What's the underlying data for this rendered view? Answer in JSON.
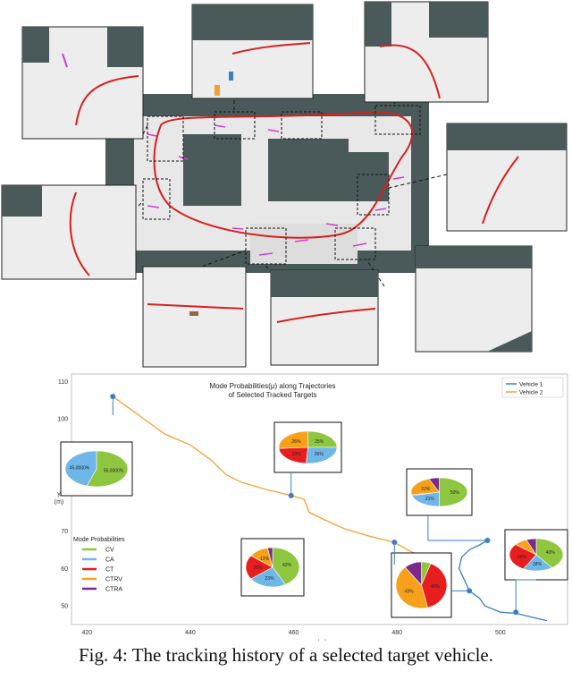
{
  "colors": {
    "map_ground": "#4a5a5a",
    "map_surface": "#eeeeee",
    "trajectory_red": "#d62020",
    "vehicle1": "#3a7fc1",
    "vehicle2": "#f5a033",
    "cv": "#8ec63f",
    "ca": "#6fb7e8",
    "ct": "#e81e1e",
    "ctrv": "#f7a11a",
    "ctra": "#7b2a8c"
  },
  "plot": {
    "title_line1": "Mode Probabilities(μ) along Trajectories",
    "title_line2": "of Selected Tracked Targets",
    "ylabel": "y",
    "ylabel_unit": "(m)",
    "xlabel": "x (m)",
    "legend_series": [
      "Vehicle 1",
      "Vehicle 2"
    ],
    "mode_legend_title": "Mode Probabilities",
    "mode_legend": [
      "CV",
      "CA",
      "CT",
      "CTRV",
      "CTRA"
    ],
    "x_ticks": [
      "420",
      "440",
      "460",
      "480",
      "500"
    ],
    "y_ticks": [
      "110",
      "100",
      "90",
      "80",
      "70",
      "60",
      "50"
    ]
  },
  "chart_data": {
    "type": "line",
    "title": "Mode Probabilities(μ) along Trajectories of Selected Tracked Targets",
    "xlabel": "x (m)",
    "ylabel": "y (m)",
    "xlim": [
      417,
      513
    ],
    "ylim": [
      45,
      112
    ],
    "legend_placement": "top-right",
    "series": [
      {
        "name": "Vehicle 1",
        "x": [
          509,
          506,
          503,
          500,
          497,
          496,
          494,
          493,
          492,
          492.5,
          494,
          496,
          497.5
        ],
        "y": [
          46,
          47,
          48,
          48.3,
          50,
          52,
          54,
          57,
          60,
          63,
          65,
          66.3,
          67.5
        ]
      },
      {
        "name": "Vehicle 2",
        "x": [
          425,
          430,
          435,
          440,
          444,
          447,
          450,
          455,
          459.5,
          462,
          463,
          466,
          470,
          475,
          479.5,
          482,
          485
        ],
        "y": [
          106,
          101,
          96,
          93,
          89,
          85,
          83,
          81,
          79.5,
          78.5,
          75,
          73,
          70.5,
          68.5,
          67,
          65,
          63
        ]
      }
    ],
    "mode_markers": [
      {
        "series": "Vehicle 2",
        "x": 425,
        "y": 106
      },
      {
        "series": "Vehicle 2",
        "x": 459.5,
        "y": 79.5
      },
      {
        "series": "Vehicle 2",
        "x": 479.5,
        "y": 67
      },
      {
        "series": "Vehicle 1",
        "x": 497.5,
        "y": 67.5
      },
      {
        "series": "Vehicle 1",
        "x": 494,
        "y": 54
      },
      {
        "series": "Vehicle 1",
        "x": 503,
        "y": 48.3
      }
    ],
    "pie_charts": [
      {
        "labels": [
          "CV",
          "CA",
          "CT",
          "CTRV",
          "CTRA"
        ],
        "values": [
          55,
          45,
          0,
          0,
          0
        ],
        "slice_text": [
          "55.0000%",
          "45.0000%",
          "",
          "",
          ""
        ]
      },
      {
        "labels": [
          "CV",
          "CA",
          "CT",
          "CTRV",
          "CTRA"
        ],
        "values": [
          25,
          26,
          23,
          26,
          0
        ],
        "slice_text": [
          "25%",
          "26%",
          "23%",
          "26%",
          ""
        ]
      },
      {
        "labels": [
          "CV",
          "CA",
          "CT",
          "CTRV",
          "CTRA"
        ],
        "values": [
          50,
          21,
          1,
          22,
          6
        ],
        "slice_text": [
          "50%",
          "21%",
          "",
          "22%",
          ""
        ]
      },
      {
        "labels": [
          "CV",
          "CA",
          "CT",
          "CTRV",
          "CTRA"
        ],
        "values": [
          42,
          23,
          20,
          12,
          3
        ],
        "slice_text": [
          "42%",
          "23%",
          "20%",
          "12%",
          ""
        ]
      },
      {
        "labels": [
          "CV",
          "CA",
          "CT",
          "CTRV",
          "CTRA"
        ],
        "values": [
          6,
          0,
          40,
          43,
          11
        ],
        "slice_text": [
          "",
          "",
          "40%",
          "43%",
          ""
        ]
      },
      {
        "labels": [
          "CV",
          "CA",
          "CT",
          "CTRV",
          "CTRA"
        ],
        "values": [
          40,
          18,
          28,
          8,
          6
        ],
        "slice_text": [
          "40%",
          "18%",
          "28%",
          "",
          ""
        ]
      }
    ]
  },
  "caption": "Fig. 4: The tracking history of a selected target vehicle."
}
